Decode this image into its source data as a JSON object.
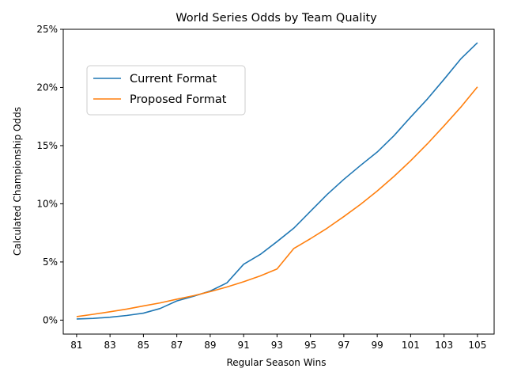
{
  "chart_data": {
    "type": "line",
    "title": "World Series Odds by Team Quality",
    "xlabel": "Regular Season Wins",
    "ylabel": "Calculated Championship Odds",
    "x": [
      81,
      82,
      83,
      84,
      85,
      86,
      87,
      88,
      89,
      90,
      91,
      92,
      93,
      94,
      95,
      96,
      97,
      98,
      99,
      100,
      101,
      102,
      103,
      104,
      105
    ],
    "xlim": [
      80.2,
      106.0
    ],
    "ylim": [
      -1.2,
      25.0
    ],
    "xticks": [
      81,
      83,
      85,
      87,
      89,
      91,
      93,
      95,
      97,
      99,
      101,
      103,
      105
    ],
    "yticks": [
      0,
      5,
      10,
      15,
      20,
      25
    ],
    "ytick_labels": [
      "0%",
      "5%",
      "10%",
      "15%",
      "20%",
      "25%"
    ],
    "grid": false,
    "legend_position": "upper-left",
    "series": [
      {
        "name": "Current Format",
        "color": "#1f77b4",
        "values": [
          0.1,
          0.15,
          0.25,
          0.4,
          0.6,
          1.0,
          1.65,
          2.05,
          2.5,
          3.2,
          4.8,
          5.65,
          6.75,
          7.9,
          9.35,
          10.8,
          12.1,
          13.3,
          14.45,
          15.85,
          17.45,
          19.0,
          20.7,
          22.45,
          23.85
        ]
      },
      {
        "name": "Proposed Format",
        "color": "#ff7f0e",
        "values": [
          0.3,
          0.5,
          0.72,
          0.95,
          1.22,
          1.48,
          1.8,
          2.1,
          2.45,
          2.85,
          3.3,
          3.8,
          4.4,
          6.15,
          7.0,
          7.9,
          8.9,
          9.95,
          11.1,
          12.35,
          13.7,
          15.15,
          16.7,
          18.3,
          20.05
        ]
      }
    ]
  }
}
